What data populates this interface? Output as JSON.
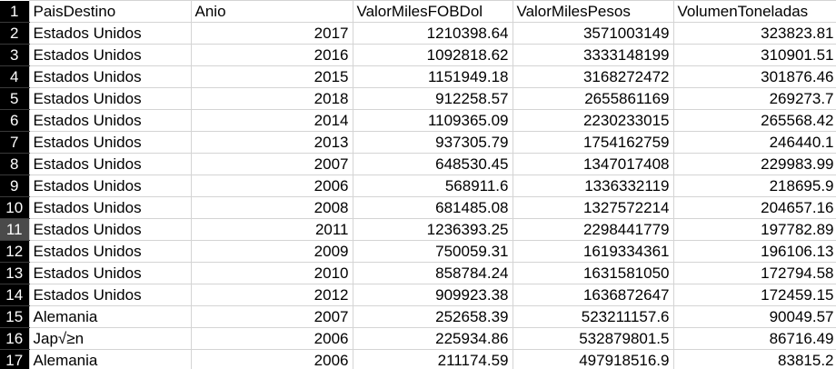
{
  "sheet": {
    "headers": [
      "PaisDestino",
      "Anio",
      "ValorMilesFOBDol",
      "ValorMilesPesos",
      "VolumenToneladas"
    ],
    "selected_row": "11",
    "rows": [
      {
        "num": "2",
        "cells": [
          "Estados Unidos",
          "2017",
          "1210398.64",
          "3571003149",
          "323823.81"
        ]
      },
      {
        "num": "3",
        "cells": [
          "Estados Unidos",
          "2016",
          "1092818.62",
          "3333148199",
          "310901.51"
        ]
      },
      {
        "num": "4",
        "cells": [
          "Estados Unidos",
          "2015",
          "1151949.18",
          "3168272472",
          "301876.46"
        ]
      },
      {
        "num": "5",
        "cells": [
          "Estados Unidos",
          "2018",
          "912258.57",
          "2655861169",
          "269273.7"
        ]
      },
      {
        "num": "6",
        "cells": [
          "Estados Unidos",
          "2014",
          "1109365.09",
          "2230233015",
          "265568.42"
        ]
      },
      {
        "num": "7",
        "cells": [
          "Estados Unidos",
          "2013",
          "937305.79",
          "1754162759",
          "246440.1"
        ]
      },
      {
        "num": "8",
        "cells": [
          "Estados Unidos",
          "2007",
          "648530.45",
          "1347017408",
          "229983.99"
        ]
      },
      {
        "num": "9",
        "cells": [
          "Estados Unidos",
          "2006",
          "568911.6",
          "1336332119",
          "218695.9"
        ]
      },
      {
        "num": "10",
        "cells": [
          "Estados Unidos",
          "2008",
          "681485.08",
          "1327572214",
          "204657.16"
        ]
      },
      {
        "num": "11",
        "cells": [
          "Estados Unidos",
          "2011",
          "1236393.25",
          "2298441779",
          "197782.89"
        ]
      },
      {
        "num": "12",
        "cells": [
          "Estados Unidos",
          "2009",
          "750059.31",
          "1619334361",
          "196106.13"
        ]
      },
      {
        "num": "13",
        "cells": [
          "Estados Unidos",
          "2010",
          "858784.24",
          "1631581050",
          "172794.58"
        ]
      },
      {
        "num": "14",
        "cells": [
          "Estados Unidos",
          "2012",
          "909923.38",
          "1636872647",
          "172459.15"
        ]
      },
      {
        "num": "15",
        "cells": [
          "Alemania",
          "2007",
          "252658.39",
          "523211157.6",
          "90049.57"
        ]
      },
      {
        "num": "16",
        "cells": [
          "Jap√≥n",
          "2006",
          "225934.86",
          "532879801.5",
          "86716.49"
        ]
      },
      {
        "num": "17",
        "cells": [
          "Alemania",
          "2006",
          "211174.59",
          "497918516.9",
          "83815.2"
        ]
      }
    ]
  }
}
